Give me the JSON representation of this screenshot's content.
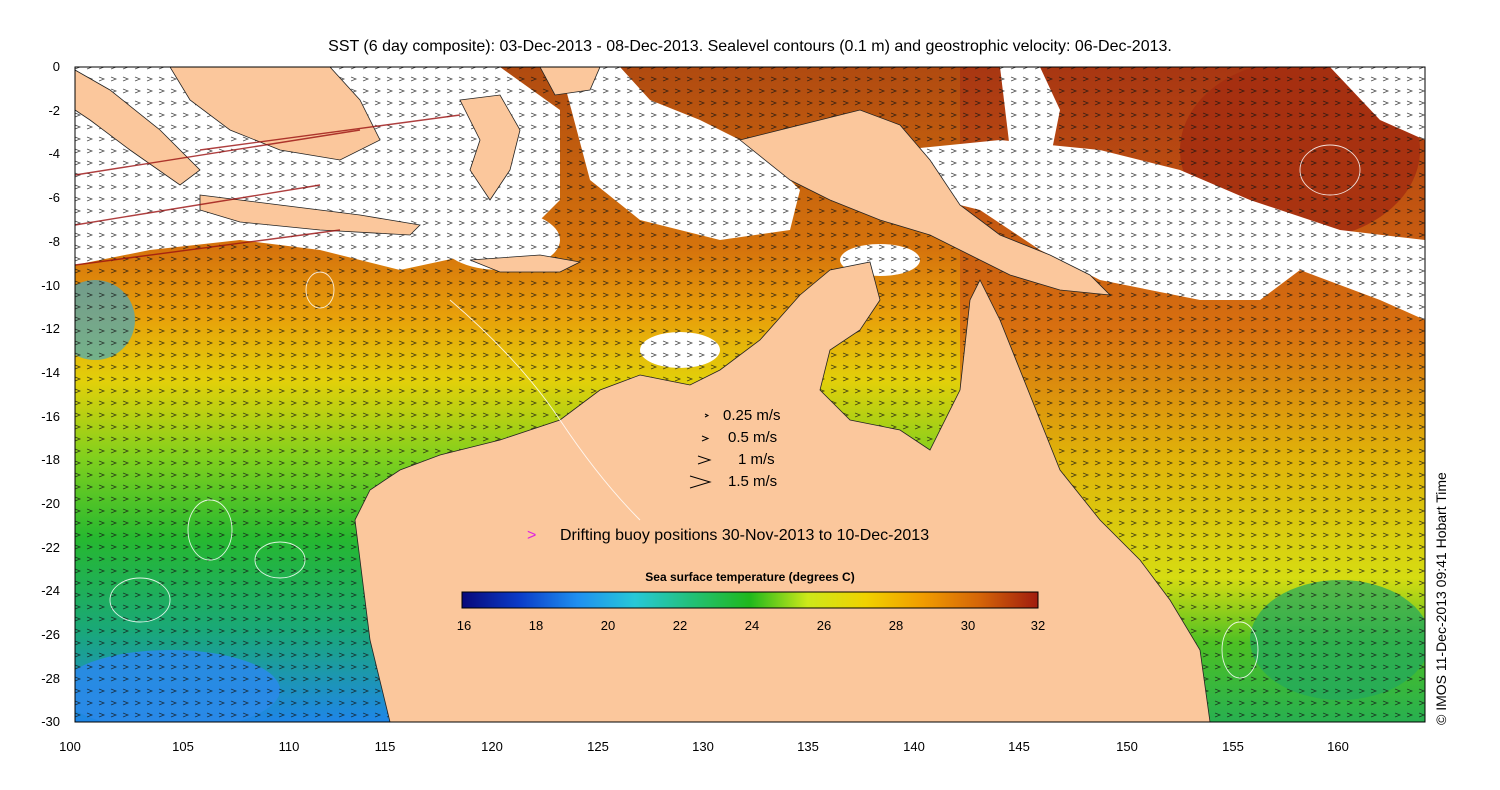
{
  "title": "SST (6 day composite): 03-Dec-2013 - 08-Dec-2013. Sealevel contours (0.1 m) and geostrophic velocity: 06-Dec-2013.",
  "axes": {
    "lat_ticks": [
      "0",
      "-2",
      "-4",
      "-6",
      "-8",
      "-10",
      "-12",
      "-14",
      "-16",
      "-18",
      "-20",
      "-22",
      "-24",
      "-26",
      "-28",
      "-30"
    ],
    "lon_ticks": [
      "100",
      "105",
      "110",
      "115",
      "120",
      "125",
      "130",
      "135",
      "140",
      "145",
      "150",
      "155",
      "160"
    ],
    "lat_range": [
      -30,
      0
    ],
    "lon_range": [
      100,
      164
    ]
  },
  "velocity_legend": [
    "0.25 m/s",
    "0.5 m/s",
    "1 m/s",
    "1.5 m/s"
  ],
  "buoy_legend": {
    "marker": ">",
    "text": "Drifting buoy positions 30-Nov-2013 to 10-Dec-2013",
    "color": "#e020e0"
  },
  "colorbar": {
    "title": "Sea surface temperature (degrees C)",
    "ticks": [
      "16",
      "18",
      "20",
      "22",
      "24",
      "26",
      "28",
      "30",
      "32"
    ],
    "range": [
      16,
      32
    ],
    "colors": [
      "#08087a",
      "#0b3cc8",
      "#1f8ff0",
      "#27c8d8",
      "#22c076",
      "#20b81c",
      "#cde81a",
      "#f0d200",
      "#f09c00",
      "#d46408",
      "#a01c0e"
    ]
  },
  "credit": "© IMOS 11-Dec-2013 09:41 Hobart Time",
  "colors": {
    "land": "#fbc79c",
    "cloud": "#ffffff"
  }
}
